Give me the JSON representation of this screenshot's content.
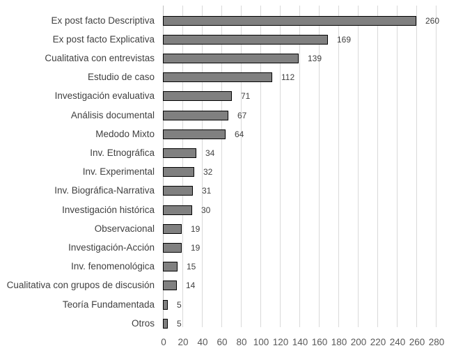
{
  "chart_data": {
    "type": "bar",
    "orientation": "horizontal",
    "title": "",
    "xlabel": "",
    "ylabel": "",
    "categories": [
      "Ex post facto Descriptiva",
      "Ex post facto Explicativa",
      "Cualitativa con entrevistas",
      "Estudio de caso",
      "Investigación evaluativa",
      "Análisis documental",
      "Medodo Mixto",
      "Inv. Etnográfica",
      "Inv. Experimental",
      "Inv. Biográfica-Narrativa",
      "Investigación histórica",
      "Observacional",
      "Investigación-Acción",
      "Inv. fenomenológica",
      "Cualitativa con grupos de discusión",
      "Teoría Fundamentada",
      "Otros"
    ],
    "values": [
      260,
      169,
      139,
      112,
      71,
      67,
      64,
      34,
      32,
      31,
      30,
      19,
      19,
      15,
      14,
      5,
      5
    ],
    "xlim": [
      0,
      280
    ],
    "x_ticks": [
      0,
      20,
      40,
      60,
      80,
      100,
      120,
      140,
      160,
      180,
      200,
      220,
      240,
      260,
      280
    ],
    "grid": "vertical",
    "data_labels": true,
    "legend": "none",
    "bar_color": "#808080",
    "bar_border": "#000000"
  }
}
